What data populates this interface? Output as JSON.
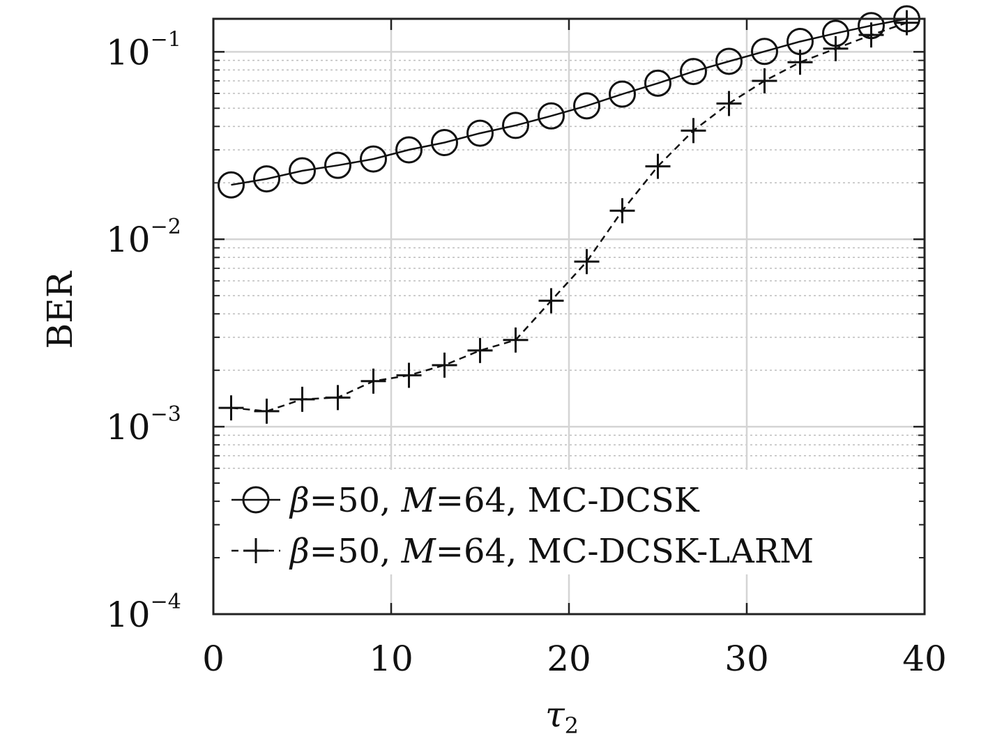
{
  "chart_data": {
    "type": "line",
    "title": "",
    "xlabel": "τ",
    "xlabel_sub": "2",
    "ylabel": "BER",
    "xlim": [
      0,
      40
    ],
    "ylim": [
      0.0001,
      0.15
    ],
    "yscale": "log",
    "grid": true,
    "legend_position": "bottom-left",
    "x_ticks": [
      {
        "value": 0,
        "label": "0"
      },
      {
        "value": 10,
        "label": "10"
      },
      {
        "value": 20,
        "label": "20"
      },
      {
        "value": 30,
        "label": "30"
      },
      {
        "value": 40,
        "label": "40"
      }
    ],
    "y_ticks": [
      {
        "value": 0.0001,
        "base": "10",
        "exp": "−4"
      },
      {
        "value": 0.001,
        "base": "10",
        "exp": "−3"
      },
      {
        "value": 0.01,
        "base": "10",
        "exp": "−2"
      },
      {
        "value": 0.1,
        "base": "10",
        "exp": "−1"
      }
    ],
    "series": [
      {
        "name": "β=50, M=64, MC-DCSK",
        "legend_parts": [
          "β",
          "=50, ",
          "M",
          "=64, MC-DCSK"
        ],
        "marker": "circle",
        "line": "solid",
        "color": "#111111",
        "x": [
          1,
          3,
          5,
          7,
          9,
          11,
          13,
          15,
          17,
          19,
          21,
          23,
          25,
          27,
          29,
          31,
          33,
          35,
          37,
          39
        ],
        "values": [
          0.0195,
          0.021,
          0.0232,
          0.0248,
          0.0268,
          0.03,
          0.0328,
          0.0368,
          0.0405,
          0.0455,
          0.0515,
          0.0595,
          0.068,
          0.0785,
          0.089,
          0.1005,
          0.1135,
          0.1255,
          0.138,
          0.15
        ]
      },
      {
        "name": "β=50, M=64, MC-DCSK-LARM",
        "legend_parts": [
          "β",
          "=50, ",
          "M",
          "=64, MC-DCSK-LARM"
        ],
        "marker": "plus",
        "line": "dashed",
        "color": "#111111",
        "x": [
          1,
          3,
          5,
          7,
          9,
          11,
          13,
          15,
          17,
          19,
          21,
          23,
          25,
          27,
          29,
          31,
          33,
          35,
          37,
          39
        ],
        "values": [
          0.00126,
          0.00121,
          0.0014,
          0.00143,
          0.00175,
          0.00188,
          0.00213,
          0.00255,
          0.0029,
          0.0047,
          0.0076,
          0.0142,
          0.0245,
          0.038,
          0.053,
          0.07,
          0.088,
          0.104,
          0.123,
          0.143
        ]
      }
    ]
  }
}
